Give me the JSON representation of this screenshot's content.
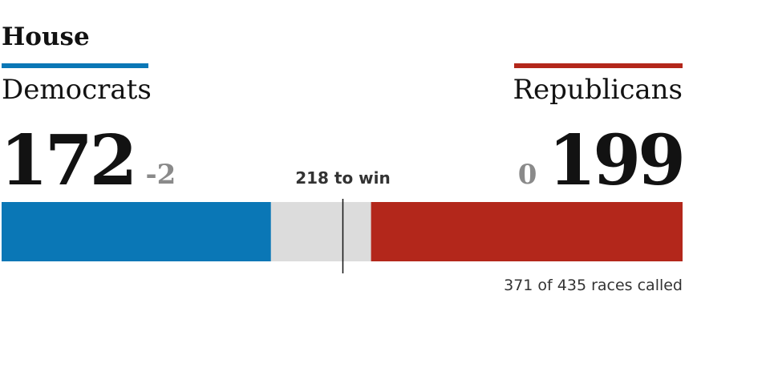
{
  "chart_data": {
    "type": "bar",
    "title": "House",
    "series": [
      {
        "name": "Democrats",
        "color": "#0a77b6",
        "values": [
          172
        ],
        "change": -2
      },
      {
        "name": "Republicans",
        "color": "#b3271b",
        "values": [
          199
        ],
        "change": 0
      }
    ],
    "xlim": [
      0,
      435
    ],
    "threshold": {
      "value": 218,
      "label": "218 to win"
    },
    "called": {
      "value": 371,
      "label": "371 of 435 races called"
    },
    "background": "#dcdcdc"
  }
}
